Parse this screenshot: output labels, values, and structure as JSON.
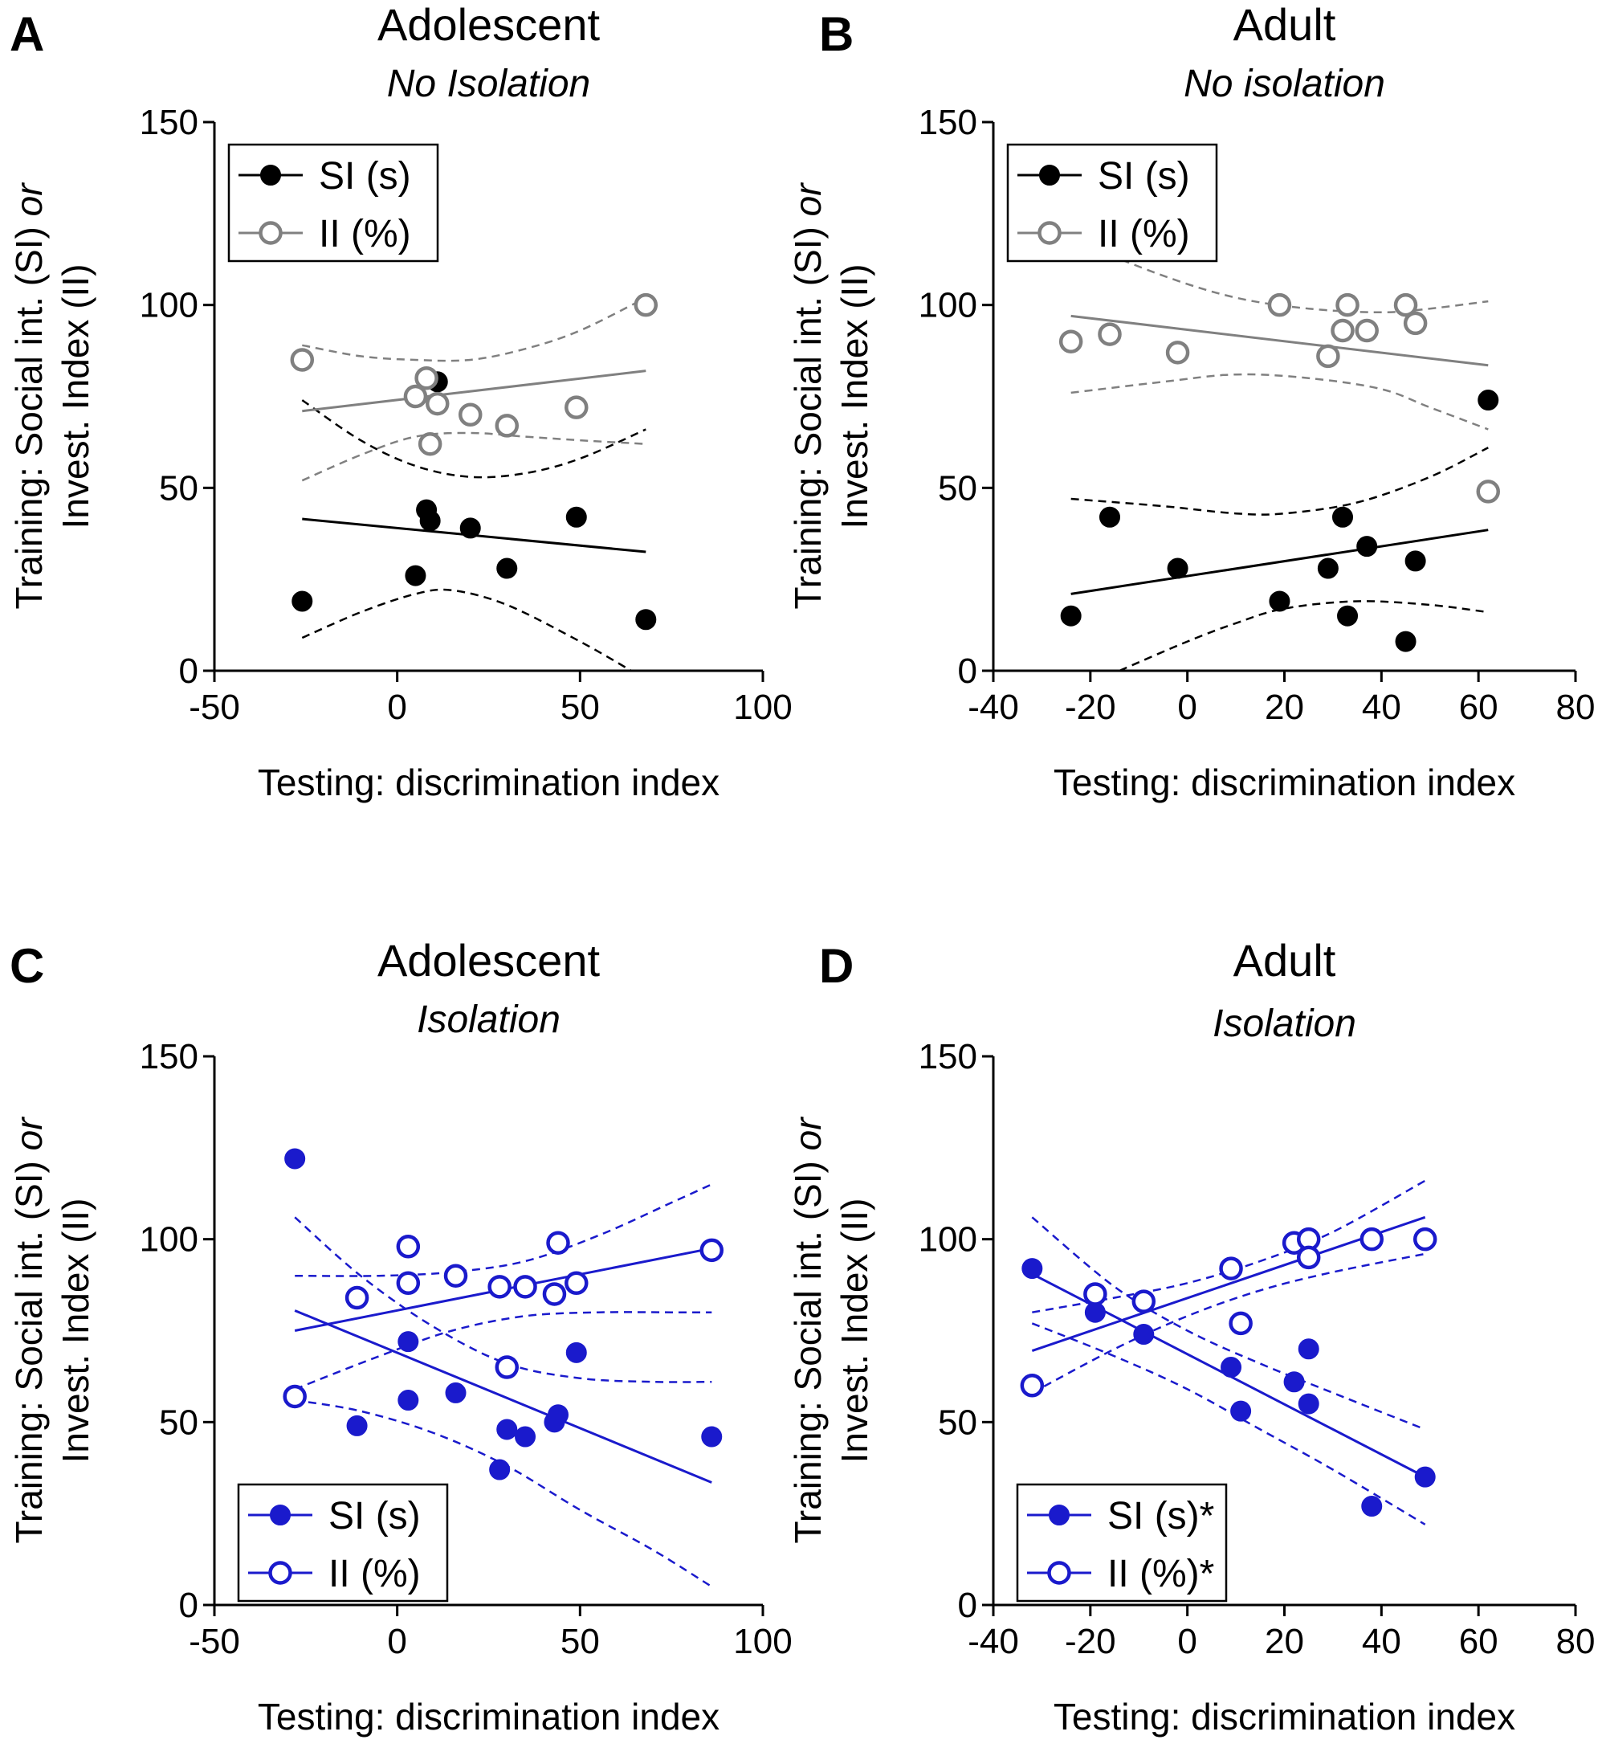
{
  "figure": {
    "panels": [
      {
        "letter": "A",
        "title": "Adolescent",
        "subtitle": "No Isolation"
      },
      {
        "letter": "B",
        "title": "Adult",
        "subtitle": "No isolation"
      },
      {
        "letter": "C",
        "title": "Adolescent",
        "subtitle": "Isolation"
      },
      {
        "letter": "D",
        "title": "Adult",
        "subtitle": "Isolation"
      }
    ]
  },
  "chart_data": [
    {
      "type": "scatter",
      "panel": "A",
      "title": "Adolescent",
      "subtitle": "No Isolation",
      "xlabel": "Testing: discrimination index",
      "ylabel": "Training: Social int. (SI) or Invest. Index (II)",
      "ylabel_line1_plain": "Training: Social int. (SI) ",
      "ylabel_line1_italic": "or",
      "ylabel_line2": "Invest. Index (II)",
      "xlim": [
        -50,
        100
      ],
      "ylim": [
        0,
        150
      ],
      "xticks": [
        -50,
        0,
        50,
        100
      ],
      "yticks": [
        0,
        50,
        100,
        150
      ],
      "xtick_labels": [
        "-50",
        "0",
        "50",
        "100"
      ],
      "ytick_labels": [
        "0",
        "50",
        "100",
        "150"
      ],
      "legend_position": "top-left",
      "series": [
        {
          "name": "SI (s)",
          "marker": "filled",
          "color": "#000000",
          "points": [
            [
              -26,
              19
            ],
            [
              5,
              26
            ],
            [
              8,
              44
            ],
            [
              9,
              41
            ],
            [
              11,
              79
            ],
            [
              20,
              39
            ],
            [
              30,
              28
            ],
            [
              49,
              42
            ],
            [
              68,
              14
            ]
          ],
          "fit": {
            "x": [
              -26,
              68
            ],
            "y": [
              41.5,
              32.5
            ]
          },
          "ci_upper": {
            "x": [
              -26,
              -10,
              5,
              20,
              35,
              50,
              68
            ],
            "y": [
              74,
              63,
              56,
              53,
              54,
              58,
              66
            ]
          },
          "ci_lower": {
            "x": [
              -26,
              -10,
              5,
              15,
              30,
              50,
              64
            ],
            "y": [
              9,
              16,
              21,
              22,
              18,
              8,
              0
            ]
          }
        },
        {
          "name": "II (%)",
          "marker": "open",
          "color": "#808080",
          "points": [
            [
              -26,
              85
            ],
            [
              5,
              75
            ],
            [
              8,
              80
            ],
            [
              9,
              62
            ],
            [
              11,
              73
            ],
            [
              20,
              70
            ],
            [
              30,
              67
            ],
            [
              49,
              72
            ],
            [
              68,
              100
            ]
          ],
          "fit": {
            "x": [
              -26,
              68
            ],
            "y": [
              71,
              82
            ]
          },
          "ci_upper": {
            "x": [
              -26,
              -10,
              5,
              20,
              35,
              50,
              68
            ],
            "y": [
              89,
              86,
              85,
              85,
              88,
              93,
              102
            ]
          },
          "ci_lower": {
            "x": [
              -26,
              -10,
              5,
              20,
              35,
              50,
              68
            ],
            "y": [
              52,
              59,
              64,
              65,
              64,
              63,
              62
            ]
          }
        }
      ]
    },
    {
      "type": "scatter",
      "panel": "B",
      "title": "Adult",
      "subtitle": "No isolation",
      "xlabel": "Testing: discrimination index",
      "ylabel": "Training: Social int. (SI) or Invest. Index (II)",
      "ylabel_line1_plain": "Training: Social int. (SI) ",
      "ylabel_line1_italic": "or",
      "ylabel_line2": "Invest. Index (II)",
      "xlim": [
        -40,
        80
      ],
      "ylim": [
        0,
        150
      ],
      "xticks": [
        -40,
        -20,
        0,
        20,
        40,
        60,
        80
      ],
      "yticks": [
        0,
        50,
        100,
        150
      ],
      "xtick_labels": [
        "-40",
        "-20",
        "0",
        "20",
        "40",
        "60",
        "80"
      ],
      "ytick_labels": [
        "0",
        "50",
        "100",
        "150"
      ],
      "legend_position": "top-left",
      "series": [
        {
          "name": "SI (s)",
          "marker": "filled",
          "color": "#000000",
          "points": [
            [
              -24,
              15
            ],
            [
              -16,
              42
            ],
            [
              -2,
              28
            ],
            [
              19,
              19
            ],
            [
              29,
              28
            ],
            [
              32,
              42
            ],
            [
              33,
              15
            ],
            [
              37,
              34
            ],
            [
              45,
              8
            ],
            [
              47,
              30
            ],
            [
              62,
              74
            ]
          ],
          "fit": {
            "x": [
              -24,
              62
            ],
            "y": [
              21,
              38.5
            ]
          },
          "ci_upper": {
            "x": [
              -24,
              -5,
              10,
              20,
              35,
              50,
              62
            ],
            "y": [
              47,
              45,
              43,
              43,
              46,
              53,
              61
            ]
          },
          "ci_lower": {
            "x": [
              -14,
              0,
              10,
              20,
              35,
              50,
              62
            ],
            "y": [
              0,
              8,
              13,
              17,
              19,
              18,
              16
            ]
          }
        },
        {
          "name": "II (%)",
          "marker": "open",
          "color": "#808080",
          "points": [
            [
              -24,
              90
            ],
            [
              -16,
              92
            ],
            [
              -2,
              87
            ],
            [
              19,
              100
            ],
            [
              29,
              86
            ],
            [
              32,
              93
            ],
            [
              33,
              100
            ],
            [
              37,
              93
            ],
            [
              45,
              100
            ],
            [
              47,
              95
            ],
            [
              62,
              49
            ]
          ],
          "fit": {
            "x": [
              -24,
              62
            ],
            "y": [
              97,
              83.5
            ]
          },
          "ci_upper": {
            "x": [
              -24,
              -5,
              10,
              25,
              40,
              50,
              62
            ],
            "y": [
              118,
              108,
              102,
              99,
              98,
              99,
              101
            ]
          },
          "ci_lower": {
            "x": [
              -24,
              -5,
              10,
              25,
              40,
              50,
              62
            ],
            "y": [
              76,
              79,
              81,
              80,
              77,
              72,
              66
            ]
          }
        }
      ]
    },
    {
      "type": "scatter",
      "panel": "C",
      "title": "Adolescent",
      "subtitle": "Isolation",
      "xlabel": "Testing: discrimination index",
      "ylabel": "Training: Social int. (SI) or Invest. Index (II)",
      "ylabel_line1_plain": "Training: Social int. (SI) ",
      "ylabel_line1_italic": "or",
      "ylabel_line2": "Invest. Index (II)",
      "xlim": [
        -50,
        100
      ],
      "ylim": [
        0,
        150
      ],
      "xticks": [
        -50,
        0,
        50,
        100
      ],
      "yticks": [
        0,
        50,
        100,
        150
      ],
      "xtick_labels": [
        "-50",
        "0",
        "50",
        "100"
      ],
      "ytick_labels": [
        "0",
        "50",
        "100",
        "150"
      ],
      "legend_position": "bottom-left",
      "series": [
        {
          "name": "SI (s)",
          "marker": "filled",
          "color": "#1a1acc",
          "points": [
            [
              -28,
              122
            ],
            [
              -11,
              49
            ],
            [
              3,
              72
            ],
            [
              3,
              56
            ],
            [
              16,
              58
            ],
            [
              28,
              37
            ],
            [
              30,
              48
            ],
            [
              35,
              46
            ],
            [
              43,
              50
            ],
            [
              44,
              52
            ],
            [
              49,
              69
            ],
            [
              86,
              46
            ]
          ],
          "fit": {
            "x": [
              -28,
              86
            ],
            "y": [
              80.5,
              33.5
            ]
          },
          "ci_upper": {
            "x": [
              -28,
              -10,
              10,
              30,
              50,
              70,
              86
            ],
            "y": [
              106,
              90,
              76,
              66,
              62,
              61,
              61
            ]
          },
          "ci_lower": {
            "x": [
              -28,
              -10,
              10,
              30,
              50,
              70,
              86
            ],
            "y": [
              56,
              53,
              47,
              38,
              26,
              15,
              5
            ]
          }
        },
        {
          "name": "II (%)",
          "marker": "open",
          "color": "#1a1acc",
          "points": [
            [
              -28,
              57
            ],
            [
              -11,
              84
            ],
            [
              3,
              98
            ],
            [
              3,
              88
            ],
            [
              16,
              90
            ],
            [
              28,
              87
            ],
            [
              30,
              65
            ],
            [
              35,
              87
            ],
            [
              43,
              85
            ],
            [
              44,
              99
            ],
            [
              49,
              88
            ],
            [
              86,
              97
            ]
          ],
          "fit": {
            "x": [
              -28,
              86
            ],
            "y": [
              75,
              97.5
            ]
          },
          "ci_upper": {
            "x": [
              -28,
              -5,
              15,
              35,
              55,
              75,
              86
            ],
            "y": [
              90,
              90,
              91,
              94,
              101,
              110,
              115
            ]
          },
          "ci_lower": {
            "x": [
              -28,
              -5,
              15,
              35,
              55,
              75,
              86
            ],
            "y": [
              59,
              68,
              75,
              79,
              80,
              80,
              80
            ]
          }
        }
      ]
    },
    {
      "type": "scatter",
      "panel": "D",
      "title": "Adult",
      "subtitle": "Isolation",
      "xlabel": "Testing: discrimination index",
      "ylabel": "Training: Social int. (SI) or Invest. Index (II)",
      "ylabel_line1_plain": "Training: Social int. (SI) ",
      "ylabel_line1_italic": "or",
      "ylabel_line2": "Invest. Index (II)",
      "xlim": [
        -40,
        80
      ],
      "ylim": [
        0,
        150
      ],
      "xticks": [
        -40,
        -20,
        0,
        20,
        40,
        60,
        80
      ],
      "yticks": [
        0,
        50,
        100,
        150
      ],
      "xtick_labels": [
        "-40",
        "-20",
        "0",
        "20",
        "40",
        "60",
        "80"
      ],
      "ytick_labels": [
        "0",
        "50",
        "100",
        "150"
      ],
      "legend_position": "bottom-left",
      "series": [
        {
          "name": "SI (s)*",
          "marker": "filled",
          "color": "#1a1acc",
          "points": [
            [
              -32,
              92
            ],
            [
              -19,
              80
            ],
            [
              -9,
              74
            ],
            [
              9,
              65
            ],
            [
              11,
              53
            ],
            [
              22,
              61
            ],
            [
              25,
              70
            ],
            [
              25,
              55
            ],
            [
              38,
              27
            ],
            [
              49,
              35
            ]
          ],
          "fit": {
            "x": [
              -32,
              49
            ],
            "y": [
              90.5,
              35
            ]
          },
          "ci_upper": {
            "x": [
              -32,
              -15,
              0,
              15,
              30,
              49
            ],
            "y": [
              106,
              87,
              75,
              66,
              58,
              48
            ]
          },
          "ci_lower": {
            "x": [
              -32,
              -15,
              0,
              15,
              30,
              49
            ],
            "y": [
              77,
              68,
              59,
              48,
              37,
              22
            ]
          }
        },
        {
          "name": "II (%)*",
          "marker": "open",
          "color": "#1a1acc",
          "points": [
            [
              -32,
              60
            ],
            [
              -19,
              85
            ],
            [
              -9,
              83
            ],
            [
              9,
              92
            ],
            [
              11,
              77
            ],
            [
              22,
              99
            ],
            [
              25,
              100
            ],
            [
              25,
              95
            ],
            [
              38,
              100
            ],
            [
              49,
              100
            ]
          ],
          "fit": {
            "x": [
              -32,
              49
            ],
            "y": [
              69.5,
              106
            ]
          },
          "ci_upper": {
            "x": [
              -32,
              -15,
              0,
              15,
              30,
              49
            ],
            "y": [
              80,
              84,
              88,
              94,
              102,
              116
            ]
          },
          "ci_lower": {
            "x": [
              -32,
              -15,
              0,
              15,
              30,
              49
            ],
            "y": [
              58,
              70,
              79,
              86,
              91,
              96
            ]
          }
        }
      ]
    }
  ]
}
